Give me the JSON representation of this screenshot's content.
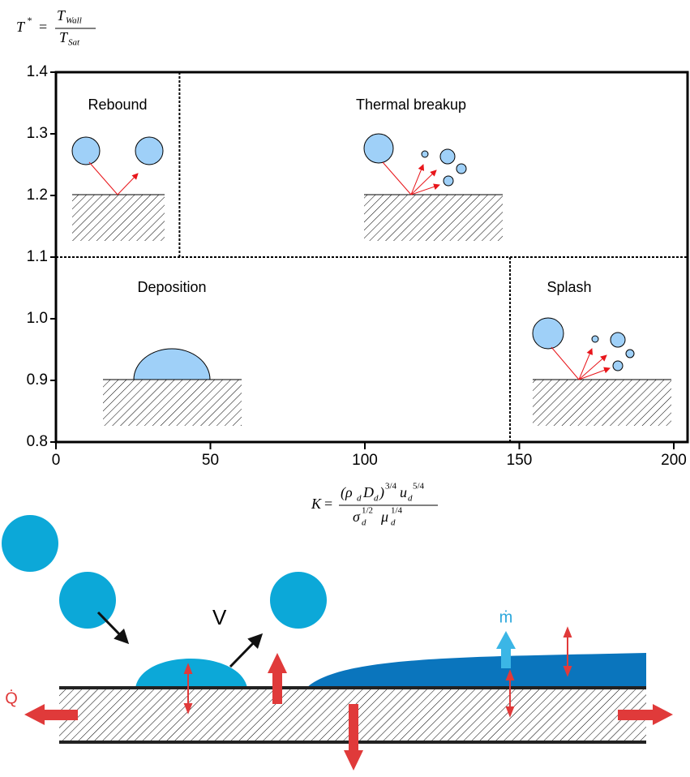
{
  "chart_data": {
    "type": "regime-map",
    "y_label_parts": [
      "T",
      "*",
      "=",
      "T",
      "Wall",
      "T",
      "Sat"
    ],
    "x_label_parts": [
      "K",
      "=",
      "(ρ",
      "d",
      "D",
      "d",
      ")",
      "3/4",
      "u",
      "d",
      "5/4",
      "σ",
      "d",
      "1/2",
      "μ",
      "d",
      "1/4"
    ],
    "xlim": [
      0,
      200
    ],
    "ylim": [
      0.8,
      1.4
    ],
    "xticks": [
      0,
      50,
      100,
      150,
      200
    ],
    "yticks": [
      0.8,
      0.9,
      {
        "value": 1,
        "label": "1.0"
      },
      1.1,
      1.2,
      1.3,
      1.4
    ],
    "boundaries": [
      {
        "axis": "y",
        "value": 1.1
      },
      {
        "axis": "x",
        "value": 40,
        "from": 1.1,
        "to": 1.4
      },
      {
        "axis": "x",
        "value": 147,
        "from": 0.8,
        "to": 1.1
      }
    ],
    "regions": [
      "Rebound",
      "Thermal breakup",
      "Deposition",
      "Splash"
    ],
    "illustration_labels": [
      "V",
      "ṁ",
      "Q̇"
    ]
  }
}
